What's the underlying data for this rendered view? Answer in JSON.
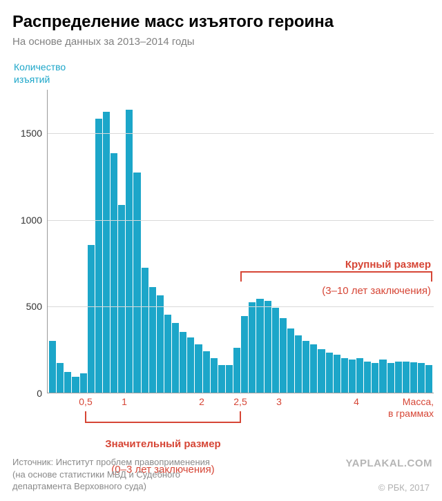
{
  "title": "Распределение масс изъятого героина",
  "subtitle": "На основе данных за 2013–2014 годы",
  "yaxis_title": "Количество\nизъятий",
  "xaxis_title": "Масса,\nв граммах",
  "colors": {
    "bar": "#1ca6c9",
    "accent": "#d64535",
    "grid": "#d9d9d9",
    "axis": "#999999",
    "title": "#000000",
    "subtitle": "#808080",
    "source": "#8a8a8a",
    "bg": "#ffffff"
  },
  "font": {
    "title_size": 24,
    "subtitle_size": 15,
    "tick_size": 14,
    "anno_size": 15
  },
  "y": {
    "min": 0,
    "max": 1750,
    "ticks": [
      0,
      500,
      1000,
      1500
    ]
  },
  "x": {
    "min": 0,
    "max": 5,
    "bin_width": 0.1,
    "ticks": [
      0.5,
      1,
      2,
      2.5,
      3,
      4
    ],
    "tick_labels": [
      "0,5",
      "1",
      "2",
      "2,5",
      "3",
      "4"
    ]
  },
  "values": [
    300,
    170,
    120,
    90,
    110,
    850,
    1580,
    1620,
    1380,
    1080,
    1630,
    1270,
    720,
    610,
    560,
    450,
    400,
    350,
    320,
    280,
    240,
    200,
    160,
    160,
    260,
    440,
    520,
    540,
    530,
    490,
    430,
    370,
    330,
    300,
    280,
    250,
    230,
    220,
    200,
    190,
    200,
    180,
    170,
    190,
    170,
    180,
    180,
    175,
    170,
    160
  ],
  "annotations": {
    "big": {
      "title": "Крупный размер",
      "sub": "(3–10 лет заключения)",
      "range_x": [
        2.5,
        5.0
      ]
    },
    "sig": {
      "title": "Значительный размер",
      "sub": "(0–3 лет заключения)",
      "range_x": [
        0.5,
        2.5
      ]
    }
  },
  "source": "Источник: Институт проблем правоприменения\n                  (на основе статистики МВД и Судебного\n                  департамента Верховного суда)",
  "copyright": "© РБК, 2017",
  "watermark": "YAPLAKAL.COM"
}
